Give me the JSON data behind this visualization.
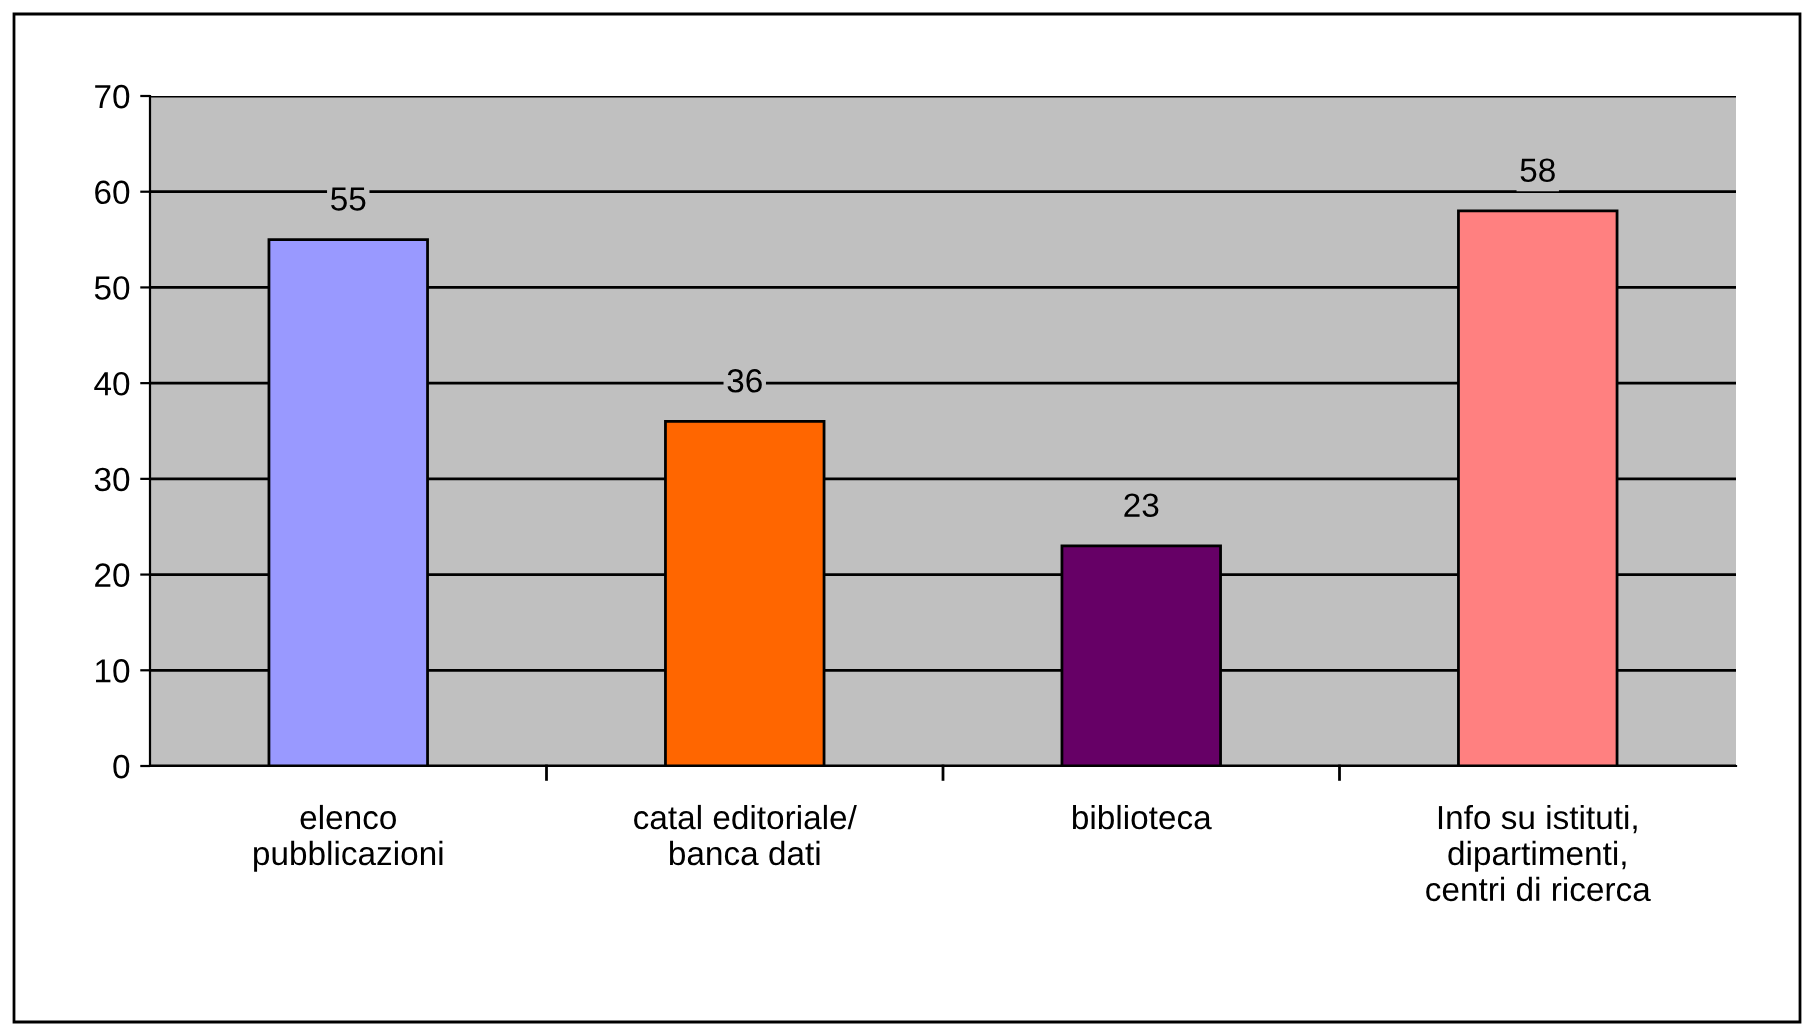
{
  "chart_data": {
    "type": "bar",
    "categories": [
      "elenco\npubblicazioni",
      "catal editoriale/\nbanca dati",
      "biblioteca",
      "Info su istituti,\ndipartimenti,\ncentri di ricerca"
    ],
    "values": [
      55,
      36,
      23,
      58
    ],
    "colors": [
      "#9999ff",
      "#ff6600",
      "#660066",
      "#ff8080"
    ],
    "ylim": [
      0,
      70
    ],
    "yticks": [
      0,
      10,
      20,
      30,
      40,
      50,
      60,
      70
    ],
    "grid": "y",
    "data_labels": true,
    "legend": false
  }
}
